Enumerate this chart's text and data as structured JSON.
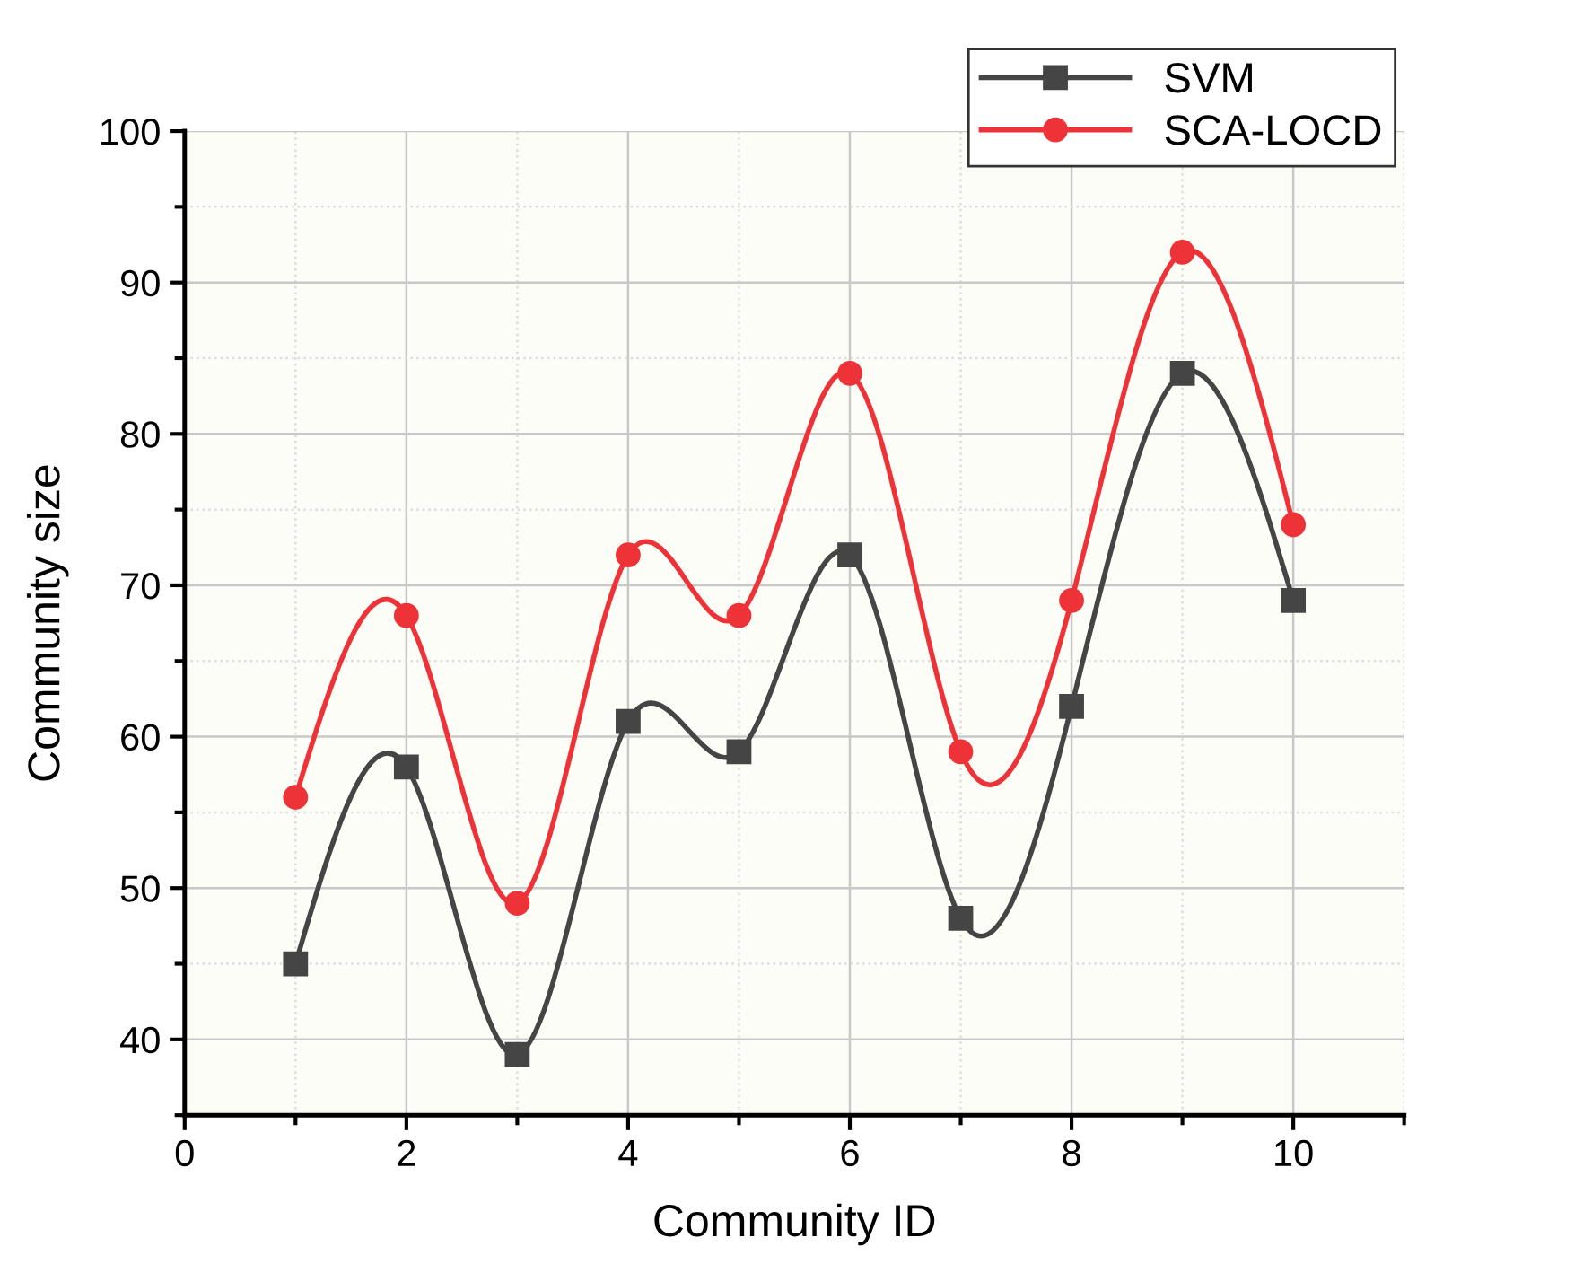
{
  "chart_data": {
    "type": "line",
    "xlabel": "Community ID",
    "ylabel": "Community size",
    "x": [
      1,
      2,
      3,
      4,
      5,
      6,
      7,
      8,
      9,
      10
    ],
    "series": [
      {
        "name": "SVM",
        "color": "#454545",
        "marker": "square",
        "values": [
          45,
          58,
          39,
          61,
          59,
          72,
          48,
          62,
          84,
          69
        ]
      },
      {
        "name": "SCA-LOCD",
        "color": "#ee3338",
        "marker": "circle",
        "values": [
          56,
          68,
          49,
          72,
          68,
          84,
          59,
          69,
          92,
          74
        ]
      }
    ],
    "xlim": [
      0,
      11
    ],
    "xticks": [
      0,
      {
        "value": 1,
        "label": null
      },
      2,
      {
        "value": 3,
        "label": null
      },
      4,
      {
        "value": 5,
        "label": null
      },
      6,
      {
        "value": 7,
        "label": null
      },
      8,
      {
        "value": 9,
        "label": null
      },
      10,
      {
        "value": 11,
        "label": null
      }
    ],
    "ylim": [
      35,
      100
    ],
    "yticks": [
      {
        "value": 35,
        "label": null
      },
      40,
      {
        "value": 45,
        "label": null
      },
      50,
      {
        "value": 55,
        "label": null
      },
      60,
      {
        "value": 65,
        "label": null
      },
      70,
      {
        "value": 75,
        "label": null
      },
      80,
      {
        "value": 85,
        "label": null
      },
      90,
      {
        "value": 95,
        "label": null
      },
      100
    ],
    "grid": true,
    "legend": "top right",
    "line_style": "solid"
  }
}
